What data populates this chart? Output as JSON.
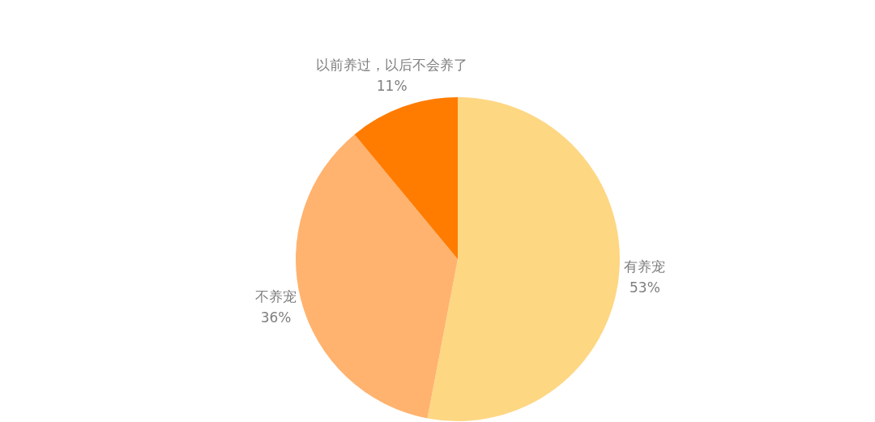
{
  "chart_data": {
    "type": "pie",
    "categories": [
      "有养宠",
      "不养宠",
      "以前养过，以后不会养了"
    ],
    "values": [
      53,
      36,
      11
    ],
    "colors": [
      "#fed783",
      "#ffb36f",
      "#ff7c00"
    ],
    "value_labels": [
      "53%",
      "36%",
      "11%"
    ],
    "legend": false
  }
}
